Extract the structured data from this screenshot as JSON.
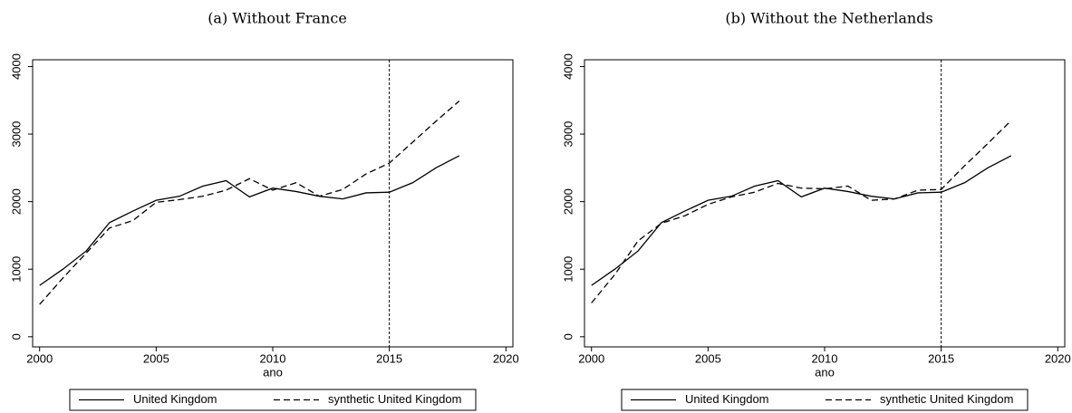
{
  "chart_data": [
    {
      "type": "line",
      "title": "(a) Without France",
      "xlabel": "ano",
      "x": [
        2000,
        2001,
        2002,
        2003,
        2004,
        2005,
        2006,
        2007,
        2008,
        2009,
        2010,
        2011,
        2012,
        2013,
        2014,
        2015,
        2016,
        2017,
        2018
      ],
      "series": [
        {
          "name": "United Kingdom",
          "color": "#000000",
          "dash": "solid",
          "values": [
            760,
            1000,
            1270,
            1690,
            1860,
            2020,
            2080,
            2230,
            2310,
            2070,
            2200,
            2150,
            2080,
            2040,
            2130,
            2140,
            2280,
            2500,
            2680
          ]
        },
        {
          "name": "synthetic United Kingdom",
          "color": "#000000",
          "dash": "dashed",
          "values": [
            480,
            870,
            1240,
            1610,
            1720,
            1990,
            2030,
            2080,
            2170,
            2340,
            2170,
            2280,
            2080,
            2180,
            2410,
            2570,
            2880,
            3190,
            3490
          ]
        }
      ],
      "vline": 2015,
      "xlim": [
        1999.7,
        2020.3
      ],
      "xticks": [
        2000,
        2005,
        2010,
        2015,
        2020
      ],
      "ylim": [
        -150,
        4100
      ],
      "yticks": [
        0,
        1000,
        2000,
        3000,
        4000
      ]
    },
    {
      "type": "line",
      "title": "(b) Without the Netherlands",
      "xlabel": "ano",
      "x": [
        2000,
        2001,
        2002,
        2003,
        2004,
        2005,
        2006,
        2007,
        2008,
        2009,
        2010,
        2011,
        2012,
        2013,
        2014,
        2015,
        2016,
        2017,
        2018
      ],
      "series": [
        {
          "name": "United Kingdom",
          "color": "#000000",
          "dash": "solid",
          "values": [
            760,
            1000,
            1270,
            1690,
            1860,
            2020,
            2080,
            2230,
            2310,
            2070,
            2200,
            2150,
            2080,
            2040,
            2130,
            2140,
            2280,
            2500,
            2680
          ]
        },
        {
          "name": "synthetic United Kingdom",
          "color": "#000000",
          "dash": "dashed",
          "values": [
            500,
            920,
            1420,
            1680,
            1790,
            1960,
            2070,
            2140,
            2270,
            2200,
            2190,
            2230,
            2020,
            2040,
            2170,
            2180,
            2530,
            2860,
            3200
          ]
        }
      ],
      "vline": 2015,
      "xlim": [
        1999.7,
        2020.3
      ],
      "xticks": [
        2000,
        2005,
        2010,
        2015,
        2020
      ],
      "ylim": [
        -150,
        4100
      ],
      "yticks": [
        0,
        1000,
        2000,
        3000,
        4000
      ]
    }
  ]
}
